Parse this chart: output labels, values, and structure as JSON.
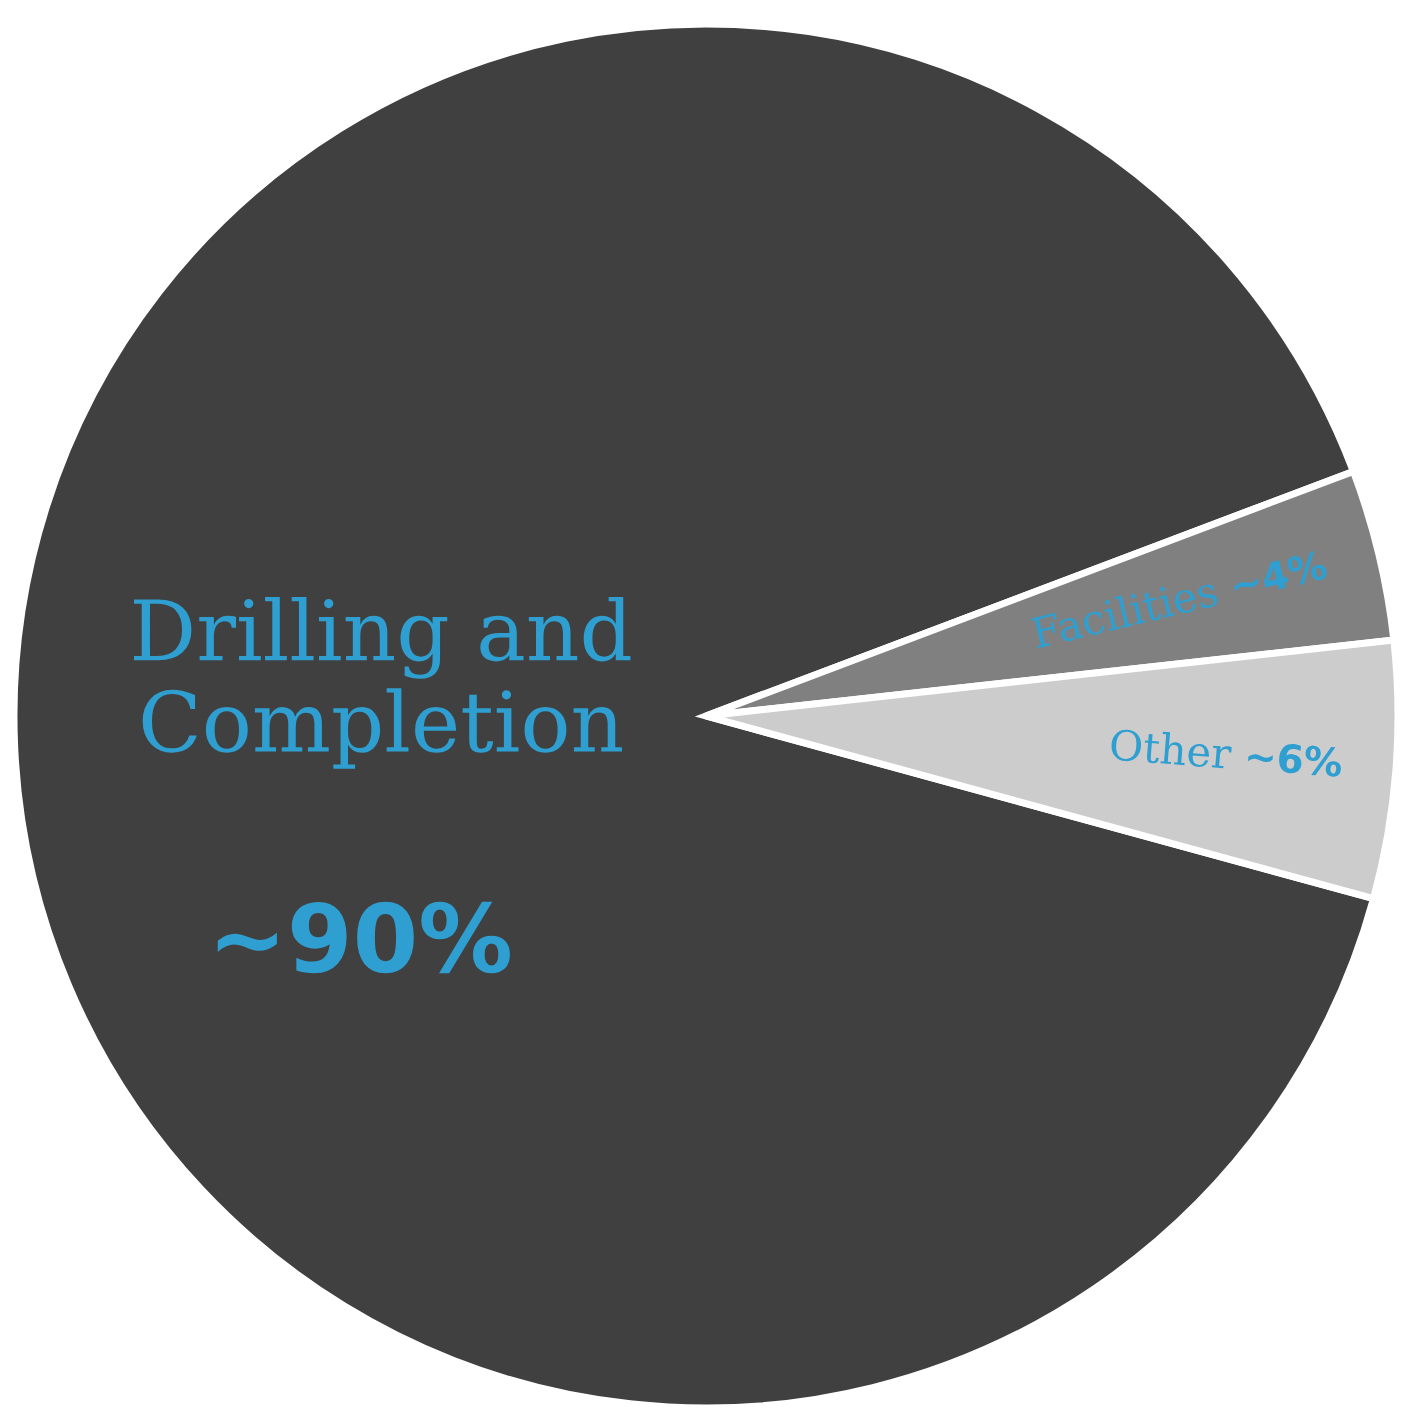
{
  "chart_data": {
    "type": "pie",
    "categories": [
      "Drilling and\nCompletion",
      "Facilities",
      "Other"
    ],
    "values": [
      90,
      4,
      6
    ],
    "value_labels": [
      "~90%",
      "~4%",
      "~6%"
    ],
    "colors": [
      "#404040",
      "#808080",
      "#cdcccc"
    ]
  }
}
